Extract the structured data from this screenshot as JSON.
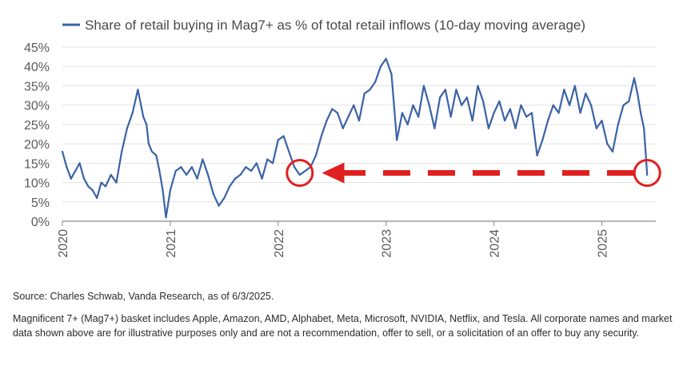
{
  "chart_data": {
    "type": "line",
    "legend_label": "Share of retail buying in Mag7+ as % of total retail inflows (10-day moving average)",
    "legend_placement": "top-left",
    "ylim": [
      0,
      45
    ],
    "yticks": [
      "0%",
      "5%",
      "10%",
      "15%",
      "20%",
      "25%",
      "30%",
      "35%",
      "40%",
      "45%"
    ],
    "xlim": [
      2020.0,
      2025.5
    ],
    "xticks": [
      "2020",
      "2021",
      "2022",
      "2023",
      "2024",
      "2025"
    ],
    "grid": true,
    "series": [
      {
        "name": "Share of retail buying in Mag7+ as % of total retail inflows (10-day moving average)",
        "color": "#3b62a6",
        "x": [
          2020.0,
          2020.04,
          2020.08,
          2020.12,
          2020.16,
          2020.2,
          2020.24,
          2020.28,
          2020.32,
          2020.36,
          2020.4,
          2020.45,
          2020.5,
          2020.55,
          2020.6,
          2020.65,
          2020.7,
          2020.75,
          2020.78,
          2020.8,
          2020.83,
          2020.87,
          2020.9,
          2020.93,
          2020.96,
          2021.0,
          2021.05,
          2021.1,
          2021.15,
          2021.2,
          2021.25,
          2021.3,
          2021.35,
          2021.4,
          2021.45,
          2021.5,
          2021.55,
          2021.6,
          2021.65,
          2021.7,
          2021.75,
          2021.8,
          2021.85,
          2021.9,
          2021.95,
          2022.0,
          2022.05,
          2022.1,
          2022.15,
          2022.2,
          2022.25,
          2022.3,
          2022.35,
          2022.4,
          2022.45,
          2022.5,
          2022.55,
          2022.6,
          2022.65,
          2022.7,
          2022.75,
          2022.8,
          2022.85,
          2022.9,
          2022.95,
          2023.0,
          2023.05,
          2023.1,
          2023.15,
          2023.2,
          2023.25,
          2023.3,
          2023.35,
          2023.4,
          2023.45,
          2023.5,
          2023.55,
          2023.6,
          2023.65,
          2023.7,
          2023.75,
          2023.8,
          2023.85,
          2023.9,
          2023.95,
          2024.0,
          2024.05,
          2024.1,
          2024.15,
          2024.2,
          2024.25,
          2024.3,
          2024.35,
          2024.4,
          2024.45,
          2024.5,
          2024.55,
          2024.6,
          2024.65,
          2024.7,
          2024.75,
          2024.8,
          2024.85,
          2024.9,
          2024.95,
          2025.0,
          2025.05,
          2025.1,
          2025.15,
          2025.2,
          2025.25,
          2025.3,
          2025.33,
          2025.36,
          2025.39,
          2025.42
        ],
        "values": [
          18,
          14,
          11,
          13,
          15,
          11,
          9,
          8,
          6,
          10,
          9,
          12,
          10,
          18,
          24,
          28,
          34,
          27,
          25,
          20,
          18,
          17,
          13,
          8,
          1,
          8,
          13,
          14,
          12,
          14,
          11,
          16,
          12,
          7,
          4,
          6,
          9,
          11,
          12,
          14,
          13,
          15,
          11,
          16,
          15,
          21,
          22,
          18,
          14,
          12,
          13,
          14,
          17,
          22,
          26,
          29,
          28,
          24,
          27,
          30,
          26,
          33,
          34,
          36,
          40,
          42,
          38,
          21,
          28,
          25,
          30,
          27,
          35,
          30,
          24,
          32,
          34,
          27,
          34,
          30,
          32,
          26,
          35,
          31,
          24,
          28,
          31,
          26,
          29,
          24,
          30,
          27,
          28,
          17,
          21,
          26,
          30,
          28,
          34,
          30,
          35,
          28,
          33,
          30,
          24,
          26,
          20,
          18,
          25,
          30,
          31,
          37,
          33,
          28,
          24,
          12
        ]
      }
    ],
    "annotations": {
      "arrow_color": "#e02020",
      "circles": [
        {
          "x": 2022.2,
          "y": 12.5
        },
        {
          "x": 2025.42,
          "y": 12.5
        }
      ],
      "dashed_arrow": {
        "from_x": 2025.3,
        "to_x": 2022.45,
        "y": 12.5
      }
    }
  },
  "notes": {
    "source": "Source: Charles Schwab, Vanda Research, as of 6/3/2025.",
    "disclaimer": "Magnificent 7+ (Mag7+) basket includes Apple, Amazon, AMD, Alphabet, Meta, Microsoft, NVIDIA, Netflix, and Tesla. All corporate names and market data shown above are for illustrative purposes only and are not a recommendation, offer to sell, or a solicitation of an offer to buy any security."
  }
}
